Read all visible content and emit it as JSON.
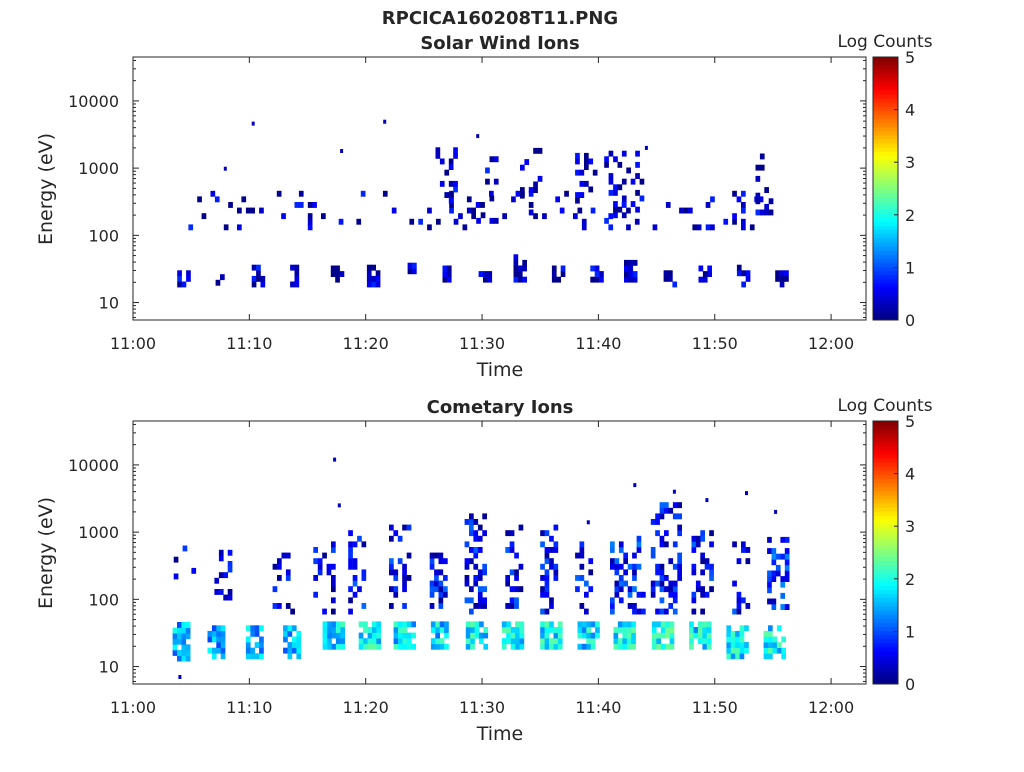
{
  "figure": {
    "filename": "RPCICA160208T11.PNG"
  },
  "chart_data": [
    {
      "type": "heatmap",
      "title": "Solar Wind Ions",
      "xlabel": "Time",
      "ylabel": "Energy (eV)",
      "x_ticks": [
        "11:00",
        "11:10",
        "11:20",
        "11:30",
        "11:40",
        "11:50",
        "12:00"
      ],
      "x_range": [
        "11:00",
        "12:03"
      ],
      "y_ticks": [
        "10",
        "100",
        "1000",
        "10000"
      ],
      "y_scale": "log",
      "y_range": [
        5.5,
        45000
      ],
      "colorbar": {
        "label": "Log Counts",
        "ticks": [
          "0",
          "1",
          "2",
          "3",
          "4",
          "5"
        ],
        "range": [
          0,
          5
        ],
        "colormap": "jet"
      },
      "clusters": [
        {
          "t": 3.8,
          "dt": 1.0,
          "emin": 17,
          "emax": 32,
          "level": 0.3,
          "density": 0.7
        },
        {
          "t": 7.1,
          "dt": 0.8,
          "emin": 18,
          "emax": 32,
          "level": 0.3,
          "density": 0.7
        },
        {
          "t": 10.2,
          "dt": 1.0,
          "emin": 17,
          "emax": 40,
          "level": 0.3,
          "density": 0.7
        },
        {
          "t": 13.5,
          "dt": 0.9,
          "emin": 17,
          "emax": 36,
          "level": 0.3,
          "density": 0.7
        },
        {
          "t": 17.0,
          "dt": 1.0,
          "emin": 20,
          "emax": 35,
          "level": 0.3,
          "density": 0.7
        },
        {
          "t": 20.1,
          "dt": 1.0,
          "emin": 17,
          "emax": 40,
          "level": 0.3,
          "density": 0.7
        },
        {
          "t": 23.6,
          "dt": 0.9,
          "emin": 22,
          "emax": 36,
          "level": 0.3,
          "density": 0.7
        },
        {
          "t": 26.6,
          "dt": 1.0,
          "emin": 20,
          "emax": 36,
          "level": 0.3,
          "density": 0.7
        },
        {
          "t": 29.7,
          "dt": 1.0,
          "emin": 20,
          "emax": 32,
          "level": 0.3,
          "density": 0.7
        },
        {
          "t": 32.7,
          "dt": 1.0,
          "emin": 20,
          "emax": 55,
          "level": 0.3,
          "density": 0.7
        },
        {
          "t": 36.0,
          "dt": 1.0,
          "emin": 20,
          "emax": 35,
          "level": 0.3,
          "density": 0.7
        },
        {
          "t": 39.3,
          "dt": 1.0,
          "emin": 20,
          "emax": 36,
          "level": 0.3,
          "density": 0.7
        },
        {
          "t": 42.2,
          "dt": 1.1,
          "emin": 20,
          "emax": 40,
          "level": 0.3,
          "density": 0.7
        },
        {
          "t": 45.6,
          "dt": 1.0,
          "emin": 17,
          "emax": 36,
          "level": 0.3,
          "density": 0.7
        },
        {
          "t": 48.6,
          "dt": 1.1,
          "emin": 20,
          "emax": 36,
          "level": 0.3,
          "density": 0.7
        },
        {
          "t": 51.9,
          "dt": 1.0,
          "emin": 17,
          "emax": 36,
          "level": 0.3,
          "density": 0.7
        },
        {
          "t": 55.2,
          "dt": 1.0,
          "emin": 17,
          "emax": 32,
          "level": 0.3,
          "density": 0.7
        },
        {
          "t": 4.0,
          "dt": 51.0,
          "emin": 120,
          "emax": 450,
          "level": 0.3,
          "density": 0.08
        },
        {
          "t": 26.0,
          "dt": 2.0,
          "emin": 300,
          "emax": 2000,
          "level": 0.3,
          "density": 0.25
        },
        {
          "t": 29.5,
          "dt": 2.0,
          "emin": 150,
          "emax": 1600,
          "level": 0.3,
          "density": 0.25
        },
        {
          "t": 32.5,
          "dt": 2.5,
          "emin": 200,
          "emax": 1900,
          "level": 0.3,
          "density": 0.2
        },
        {
          "t": 38.0,
          "dt": 2.0,
          "emin": 300,
          "emax": 1800,
          "level": 0.3,
          "density": 0.25
        },
        {
          "t": 40.5,
          "dt": 3.5,
          "emin": 150,
          "emax": 1900,
          "level": 0.3,
          "density": 0.25
        },
        {
          "t": 53.5,
          "dt": 1.5,
          "emin": 200,
          "emax": 1500,
          "level": 0.3,
          "density": 0.25
        }
      ],
      "isolated_points": [
        {
          "t": 10.2,
          "e": 4600
        },
        {
          "t": 21.5,
          "e": 4900
        },
        {
          "t": 29.5,
          "e": 3000
        },
        {
          "t": 7.8,
          "e": 980
        },
        {
          "t": 17.8,
          "e": 1800
        },
        {
          "t": 44.0,
          "e": 2000
        }
      ]
    },
    {
      "type": "heatmap",
      "title": "Cometary Ions",
      "xlabel": "Time",
      "ylabel": "Energy (eV)",
      "x_ticks": [
        "11:00",
        "11:10",
        "11:20",
        "11:30",
        "11:40",
        "11:50",
        "12:00"
      ],
      "x_range": [
        "11:00",
        "12:03"
      ],
      "y_ticks": [
        "10",
        "100",
        "1000",
        "10000"
      ],
      "y_scale": "log",
      "y_range": [
        5.5,
        45000
      ],
      "colorbar": {
        "label": "Log Counts",
        "ticks": [
          "0",
          "1",
          "2",
          "3",
          "4",
          "5"
        ],
        "range": [
          0,
          5
        ],
        "colormap": "jet"
      },
      "clusters": [
        {
          "t": 3.4,
          "dt": 1.6,
          "emin": 12,
          "emax": 45,
          "level": 1.5,
          "density": 0.85
        },
        {
          "t": 6.4,
          "dt": 1.6,
          "emin": 13,
          "emax": 45,
          "level": 1.5,
          "density": 0.85
        },
        {
          "t": 9.7,
          "dt": 1.6,
          "emin": 13,
          "emax": 45,
          "level": 1.5,
          "density": 0.85
        },
        {
          "t": 12.9,
          "dt": 1.6,
          "emin": 13,
          "emax": 45,
          "level": 1.5,
          "density": 0.85
        },
        {
          "t": 16.3,
          "dt": 2.0,
          "emin": 18,
          "emax": 45,
          "level": 1.7,
          "density": 0.85
        },
        {
          "t": 19.4,
          "dt": 1.8,
          "emin": 18,
          "emax": 45,
          "level": 1.8,
          "density": 0.85
        },
        {
          "t": 22.4,
          "dt": 2.0,
          "emin": 18,
          "emax": 45,
          "level": 1.7,
          "density": 0.85
        },
        {
          "t": 25.6,
          "dt": 1.6,
          "emin": 18,
          "emax": 45,
          "level": 1.7,
          "density": 0.85
        },
        {
          "t": 28.6,
          "dt": 1.8,
          "emin": 18,
          "emax": 45,
          "level": 1.8,
          "density": 0.85
        },
        {
          "t": 31.7,
          "dt": 1.8,
          "emin": 18,
          "emax": 45,
          "level": 1.8,
          "density": 0.85
        },
        {
          "t": 35.0,
          "dt": 1.8,
          "emin": 18,
          "emax": 45,
          "level": 1.8,
          "density": 0.85
        },
        {
          "t": 38.2,
          "dt": 1.8,
          "emin": 18,
          "emax": 45,
          "level": 1.7,
          "density": 0.85
        },
        {
          "t": 41.3,
          "dt": 2.0,
          "emin": 18,
          "emax": 45,
          "level": 1.8,
          "density": 0.85
        },
        {
          "t": 44.6,
          "dt": 2.0,
          "emin": 18,
          "emax": 45,
          "level": 1.9,
          "density": 0.85
        },
        {
          "t": 47.8,
          "dt": 1.8,
          "emin": 18,
          "emax": 45,
          "level": 1.8,
          "density": 0.85
        },
        {
          "t": 51.0,
          "dt": 1.8,
          "emin": 13,
          "emax": 45,
          "level": 1.8,
          "density": 0.85
        },
        {
          "t": 54.2,
          "dt": 1.8,
          "emin": 13,
          "emax": 45,
          "level": 1.8,
          "density": 0.85
        },
        {
          "t": 3.5,
          "dt": 2.0,
          "emin": 200,
          "emax": 1000,
          "level": 0.4,
          "density": 0.2
        },
        {
          "t": 7.0,
          "dt": 1.5,
          "emin": 80,
          "emax": 700,
          "level": 0.4,
          "density": 0.25
        },
        {
          "t": 12.0,
          "dt": 2.0,
          "emin": 60,
          "emax": 500,
          "level": 0.4,
          "density": 0.25
        },
        {
          "t": 15.5,
          "dt": 2.0,
          "emin": 60,
          "emax": 700,
          "level": 0.5,
          "density": 0.3
        },
        {
          "t": 18.5,
          "dt": 1.5,
          "emin": 60,
          "emax": 1000,
          "level": 0.6,
          "density": 0.35
        },
        {
          "t": 22.0,
          "dt": 2.0,
          "emin": 60,
          "emax": 1200,
          "level": 0.6,
          "density": 0.35
        },
        {
          "t": 25.5,
          "dt": 1.5,
          "emin": 60,
          "emax": 500,
          "level": 0.6,
          "density": 0.35
        },
        {
          "t": 28.5,
          "dt": 2.0,
          "emin": 60,
          "emax": 2000,
          "level": 0.6,
          "density": 0.4
        },
        {
          "t": 32.0,
          "dt": 1.5,
          "emin": 60,
          "emax": 1300,
          "level": 0.6,
          "density": 0.4
        },
        {
          "t": 35.0,
          "dt": 1.5,
          "emin": 60,
          "emax": 1200,
          "level": 0.6,
          "density": 0.4
        },
        {
          "t": 38.0,
          "dt": 1.5,
          "emin": 60,
          "emax": 800,
          "level": 0.6,
          "density": 0.35
        },
        {
          "t": 41.0,
          "dt": 3.0,
          "emin": 60,
          "emax": 900,
          "level": 0.7,
          "density": 0.4
        },
        {
          "t": 44.5,
          "dt": 2.5,
          "emin": 60,
          "emax": 3000,
          "level": 0.6,
          "density": 0.35
        },
        {
          "t": 48.0,
          "dt": 2.0,
          "emin": 60,
          "emax": 1000,
          "level": 0.6,
          "density": 0.3
        },
        {
          "t": 51.5,
          "dt": 2.0,
          "emin": 60,
          "emax": 700,
          "level": 0.6,
          "density": 0.3
        },
        {
          "t": 54.5,
          "dt": 2.0,
          "emin": 70,
          "emax": 800,
          "level": 0.8,
          "density": 0.4
        }
      ],
      "isolated_points": [
        {
          "t": 17.2,
          "e": 12000
        },
        {
          "t": 17.6,
          "e": 2500
        },
        {
          "t": 43.0,
          "e": 5000
        },
        {
          "t": 46.4,
          "e": 4000
        },
        {
          "t": 49.2,
          "e": 3000
        },
        {
          "t": 52.6,
          "e": 3800
        },
        {
          "t": 55.1,
          "e": 2000
        },
        {
          "t": 39.0,
          "e": 1400
        },
        {
          "t": 3.9,
          "e": 7
        }
      ]
    }
  ]
}
